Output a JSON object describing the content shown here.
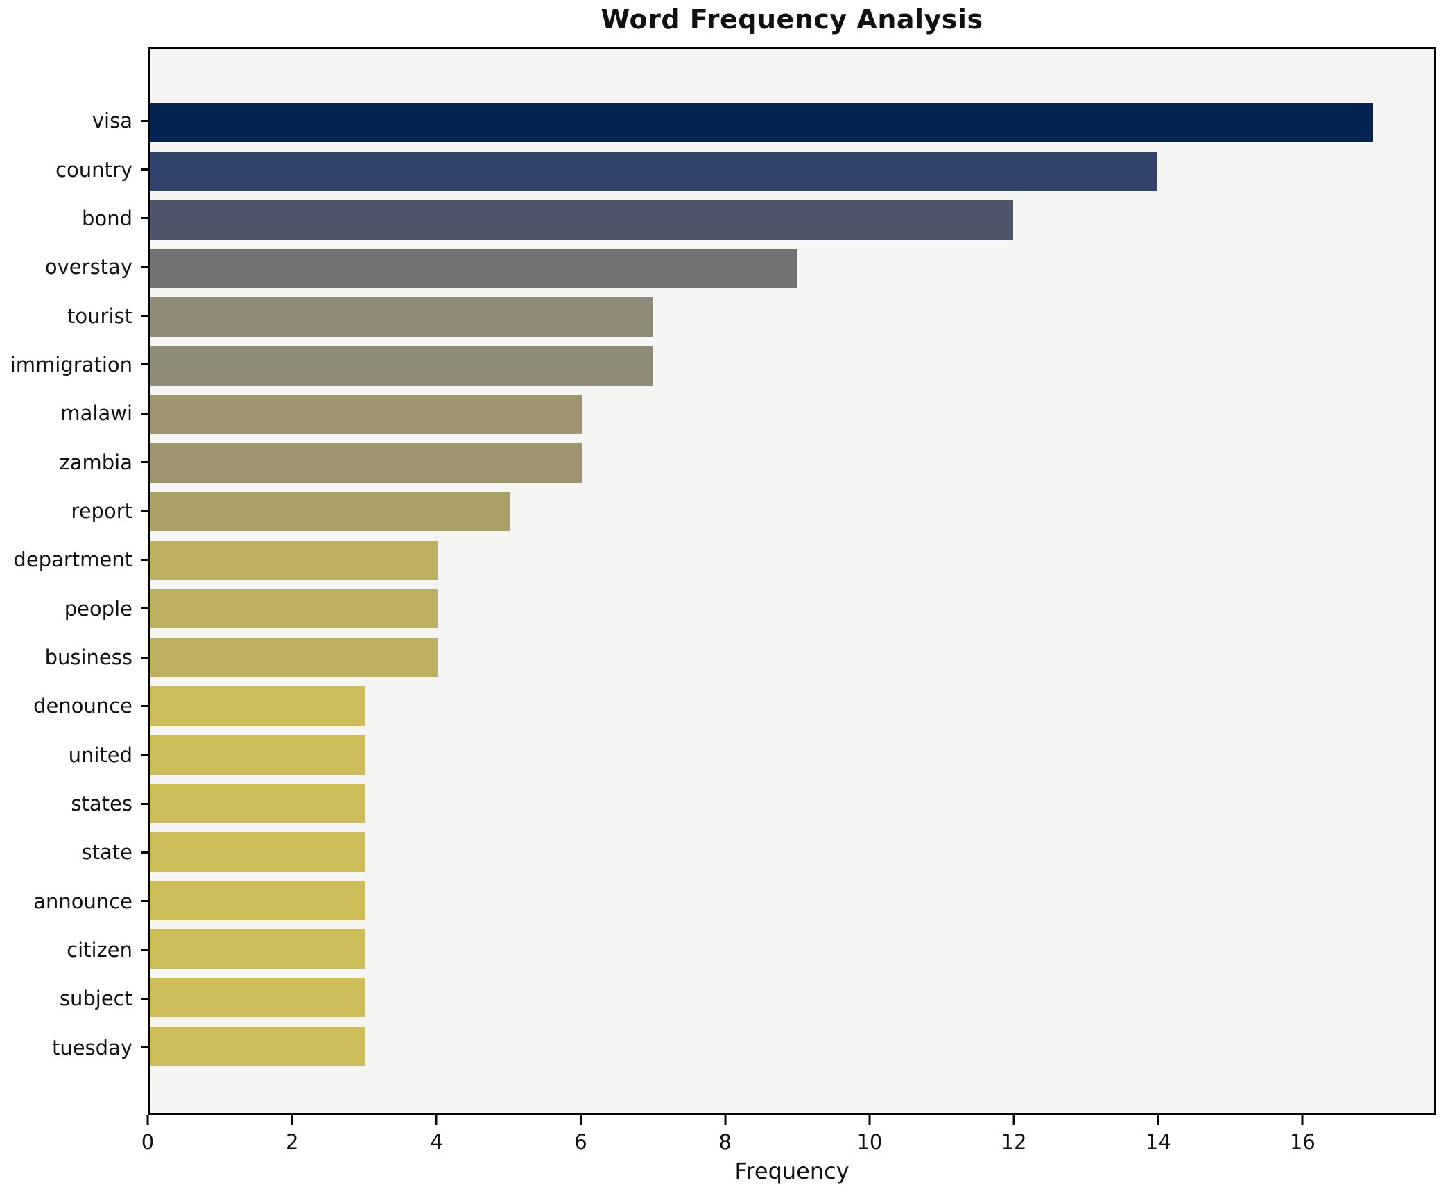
{
  "chart_data": {
    "type": "bar",
    "orientation": "horizontal",
    "title": "Word Frequency Analysis",
    "xlabel": "Frequency",
    "ylabel": "",
    "xlim": [
      0,
      17.85
    ],
    "xticks": [
      0,
      2,
      4,
      6,
      8,
      10,
      12,
      14,
      16
    ],
    "grid": false,
    "legend": "none",
    "plot_background": "#f5f5f4",
    "spine_color": "#000000",
    "categories": [
      "visa",
      "country",
      "bond",
      "overstay",
      "tourist",
      "immigration",
      "malawi",
      "zambia",
      "report",
      "department",
      "people",
      "business",
      "denounce",
      "united",
      "states",
      "state",
      "announce",
      "citizen",
      "subject",
      "tuesday"
    ],
    "values": [
      17,
      14,
      12,
      9,
      7,
      7,
      6,
      6,
      5,
      4,
      4,
      4,
      3,
      3,
      3,
      3,
      3,
      3,
      3,
      3
    ],
    "bar_colors": [
      "#032450",
      "#32436b",
      "#4f566b",
      "#727274",
      "#908a78",
      "#908a78",
      "#9c9570",
      "#9c9570",
      "#aaa167",
      "#bcb060",
      "#bcb060",
      "#bcb060",
      "#ccbd58",
      "#ccbd58",
      "#ccbd58",
      "#ccbd58",
      "#ccbd58",
      "#ccbd58",
      "#ccbd58",
      "#ccbd58"
    ]
  }
}
